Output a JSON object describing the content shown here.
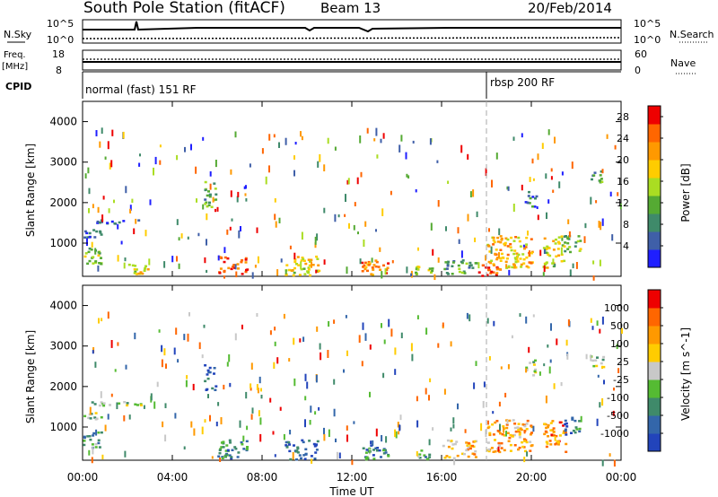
{
  "header": {
    "station": "South Pole Station (fitACF)",
    "beam": "Beam 13",
    "date": "20/Feb/2014"
  },
  "top_panel": {
    "left_label": "N.Sky",
    "left_ticks": [
      "10^5",
      "10^0"
    ],
    "right_label": "N.Search",
    "right_ticks": [
      "10^5",
      "10^0"
    ],
    "right_line_style": "dotted"
  },
  "freq_panel": {
    "left_label_1": "Freq.",
    "left_label_2": "[MHz]",
    "left_ticks": [
      "18",
      "8"
    ],
    "right_label": "Nave",
    "right_ticks": [
      "60",
      "0"
    ]
  },
  "cpid_panel": {
    "label": "CPID",
    "segments": [
      {
        "start_hour": 0,
        "text": "normal (fast) 151 RF"
      },
      {
        "start_hour": 18,
        "text": "rbsp 200 RF"
      }
    ]
  },
  "chart_data": [
    {
      "type": "heatmap",
      "panel": "power",
      "ylabel": "Slant Range [km]",
      "ylim": [
        180,
        4500
      ],
      "yticks": [
        "1000",
        "2000",
        "3000",
        "4000"
      ],
      "colorbar": {
        "label": "Power [dB]",
        "ticks": [
          "4",
          "8",
          "12",
          "16",
          "20",
          "24",
          "28"
        ],
        "range": [
          0,
          30
        ],
        "colors": [
          "#1f1fff",
          "#3f5fa8",
          "#3f8a6a",
          "#55aa33",
          "#aadd22",
          "#ffcc00",
          "#ff9900",
          "#ff6600",
          "#ee0000"
        ]
      },
      "regions": [
        {
          "x0": 0.0,
          "x1": 0.8,
          "y0": 1150,
          "y1": 1350,
          "level": 0.2
        },
        {
          "x0": 0.0,
          "x1": 0.8,
          "y0": 500,
          "y1": 900,
          "level": 0.45
        },
        {
          "x0": 0.3,
          "x1": 2.8,
          "y0": 1500,
          "y1": 1600,
          "level": 0.15
        },
        {
          "x0": 2.0,
          "x1": 3.0,
          "y0": 250,
          "y1": 500,
          "level": 0.6
        },
        {
          "x0": 5.4,
          "x1": 5.9,
          "y0": 1900,
          "y1": 2600,
          "level": 0.35
        },
        {
          "x0": 6.0,
          "x1": 7.3,
          "y0": 220,
          "y1": 700,
          "level": 0.85
        },
        {
          "x0": 9.0,
          "x1": 10.5,
          "y0": 220,
          "y1": 700,
          "level": 0.6
        },
        {
          "x0": 12.4,
          "x1": 13.6,
          "y0": 220,
          "y1": 600,
          "level": 0.75
        },
        {
          "x0": 14.8,
          "x1": 15.6,
          "y0": 220,
          "y1": 450,
          "level": 0.5
        },
        {
          "x0": 16.0,
          "x1": 17.5,
          "y0": 250,
          "y1": 600,
          "level": 0.35
        },
        {
          "x0": 17.6,
          "x1": 18.6,
          "y0": 200,
          "y1": 500,
          "level": 0.9
        },
        {
          "x0": 18.0,
          "x1": 20.0,
          "y0": 400,
          "y1": 1200,
          "level": 0.65
        },
        {
          "x0": 20.5,
          "x1": 21.5,
          "y0": 400,
          "y1": 1200,
          "level": 0.55
        },
        {
          "x0": 21.4,
          "x1": 22.2,
          "y0": 800,
          "y1": 1200,
          "level": 0.4
        },
        {
          "x0": 22.6,
          "x1": 23.2,
          "y0": 2500,
          "y1": 2800,
          "level": 0.3
        },
        {
          "x0": 19.7,
          "x1": 20.2,
          "y0": 1900,
          "y1": 2300,
          "level": 0.25
        }
      ]
    },
    {
      "type": "heatmap",
      "panel": "velocity",
      "xlabel": "Time UT",
      "xticks": [
        "00:00",
        "04:00",
        "08:00",
        "12:00",
        "16:00",
        "20:00",
        "00:00"
      ],
      "xlim": [
        0,
        24
      ],
      "ylabel": "Slant Range [km]",
      "ylim": [
        180,
        4500
      ],
      "yticks": [
        "1000",
        "2000",
        "3000",
        "4000"
      ],
      "colorbar": {
        "label": "Velocity [m s^-1]",
        "ticks": [
          "1000",
          "500",
          "100",
          "25",
          "-25",
          "-100",
          "-500",
          "-1000"
        ],
        "colors": [
          "#2244bb",
          "#3366aa",
          "#3f8a6a",
          "#55bb33",
          "#c8c8c8",
          "#ffcc00",
          "#ff9900",
          "#ff6600",
          "#ee0000"
        ]
      },
      "regions": [
        {
          "x0": 0.0,
          "x1": 0.8,
          "y0": 1200,
          "y1": 1400,
          "level": 0.45
        },
        {
          "x0": 0.0,
          "x1": 0.8,
          "y0": 500,
          "y1": 900,
          "level": 0.3
        },
        {
          "x0": 0.3,
          "x1": 2.8,
          "y0": 1550,
          "y1": 1650,
          "level": 0.45
        },
        {
          "x0": 5.4,
          "x1": 5.9,
          "y0": 1900,
          "y1": 2600,
          "level": 0.1
        },
        {
          "x0": 6.0,
          "x1": 7.3,
          "y0": 220,
          "y1": 700,
          "level": 0.25
        },
        {
          "x0": 9.0,
          "x1": 10.5,
          "y0": 220,
          "y1": 700,
          "level": 0.15
        },
        {
          "x0": 12.4,
          "x1": 13.6,
          "y0": 220,
          "y1": 600,
          "level": 0.2
        },
        {
          "x0": 14.8,
          "x1": 15.6,
          "y0": 220,
          "y1": 450,
          "level": 0.3
        },
        {
          "x0": 16.0,
          "x1": 17.5,
          "y0": 250,
          "y1": 700,
          "level": 0.65
        },
        {
          "x0": 18.0,
          "x1": 20.0,
          "y0": 400,
          "y1": 1200,
          "level": 0.7
        },
        {
          "x0": 20.5,
          "x1": 21.5,
          "y0": 400,
          "y1": 1200,
          "level": 0.75
        },
        {
          "x0": 21.4,
          "x1": 22.2,
          "y0": 800,
          "y1": 1300,
          "level": 0.2
        },
        {
          "x0": 22.6,
          "x1": 23.2,
          "y0": 2500,
          "y1": 2800,
          "level": 0.45
        },
        {
          "x0": 19.7,
          "x1": 20.2,
          "y0": 2300,
          "y1": 2700,
          "level": 0.45
        }
      ]
    }
  ],
  "axis_label": "Time UT"
}
